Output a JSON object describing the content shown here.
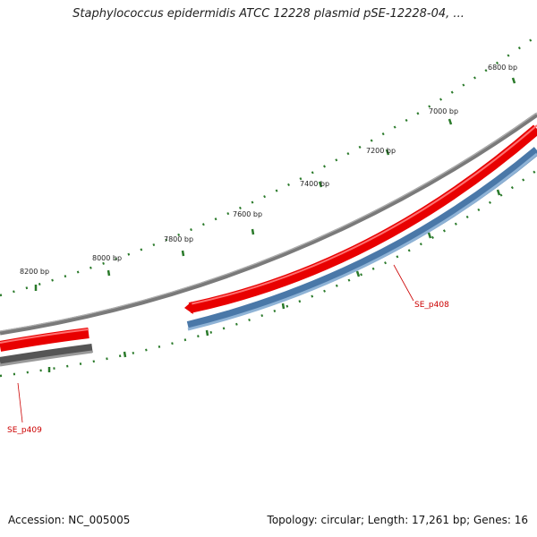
{
  "title": "Staphylococcus epidermidis ATCC 12228 plasmid pSE-12228-04, ...",
  "footer": {
    "accession": "Accession: NC_005005",
    "summary": "Topology: circular; Length: 17,261 bp; Genes: 16"
  },
  "ticks": [
    {
      "label": "6800 bp"
    },
    {
      "label": "7000 bp"
    },
    {
      "label": "7200 bp"
    },
    {
      "label": "7400 bp"
    },
    {
      "label": "7600 bp"
    },
    {
      "label": "7800 bp"
    },
    {
      "label": "8000 bp"
    },
    {
      "label": "8200 bp"
    }
  ],
  "genes": [
    {
      "name": "SE_p408",
      "color": "#cc0000"
    },
    {
      "name": "SE_p409",
      "color": "#cc0000"
    }
  ],
  "colors": {
    "forward_strand": "#ee0000",
    "reverse_strand": "#4f7fad",
    "backbone": "#888888",
    "tick_marks": "#2a7a2a",
    "dark_feature": "#555555"
  }
}
